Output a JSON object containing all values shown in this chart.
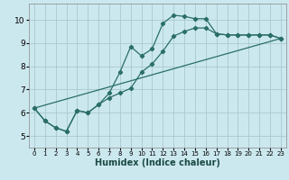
{
  "xlabel": "Humidex (Indice chaleur)",
  "background_color": "#cce8ef",
  "grid_color": "#aac8d0",
  "line_color": "#2a6e68",
  "xlim": [
    -0.5,
    23.5
  ],
  "ylim": [
    4.5,
    10.7
  ],
  "xticks": [
    0,
    1,
    2,
    3,
    4,
    5,
    6,
    7,
    8,
    9,
    10,
    11,
    12,
    13,
    14,
    15,
    16,
    17,
    18,
    19,
    20,
    21,
    22,
    23
  ],
  "yticks": [
    5,
    6,
    7,
    8,
    9,
    10
  ],
  "curve1_x": [
    0,
    1,
    2,
    3,
    4,
    5,
    6,
    7,
    8,
    9,
    10,
    11,
    12,
    13,
    14,
    15,
    16,
    17,
    18,
    19,
    20,
    21,
    22,
    23
  ],
  "curve1_y": [
    6.2,
    5.65,
    5.35,
    5.2,
    6.1,
    6.0,
    6.35,
    6.85,
    7.75,
    8.85,
    8.45,
    8.75,
    9.85,
    10.2,
    10.15,
    10.05,
    10.05,
    9.4,
    9.35,
    9.35,
    9.35,
    9.35,
    9.35,
    9.2
  ],
  "curve2_x": [
    0,
    1,
    2,
    3,
    4,
    5,
    6,
    7,
    8,
    9,
    10,
    11,
    12,
    13,
    14,
    15,
    16,
    17,
    18,
    19,
    20,
    21,
    22,
    23
  ],
  "curve2_y": [
    6.2,
    5.65,
    5.35,
    5.2,
    6.1,
    6.0,
    6.35,
    6.65,
    6.85,
    7.05,
    7.75,
    8.1,
    8.65,
    9.3,
    9.5,
    9.65,
    9.65,
    9.4,
    9.35,
    9.35,
    9.35,
    9.35,
    9.35,
    9.2
  ],
  "line3_x": [
    0,
    23
  ],
  "line3_y": [
    6.2,
    9.2
  ]
}
